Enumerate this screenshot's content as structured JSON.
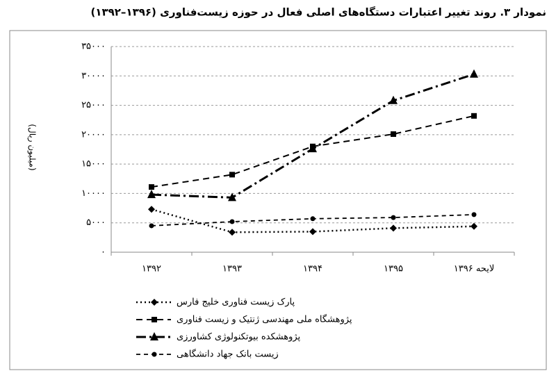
{
  "chart_data": {
    "type": "line",
    "title": "نمودار ۳. روند تغییر اعتبارات دستگاه‌های اصلی فعال در حوزه زیست‌فناوری (۱۳۹۶–۱۳۹۲)",
    "y_label": "(میلیون ریال)",
    "categories": [
      "۱۳۹۲",
      "۱۳۹۳",
      "۱۳۹۴",
      "۱۳۹۵",
      "لایحه ۱۳۹۶"
    ],
    "ylim": [
      0,
      35000
    ],
    "yticks": [
      {
        "value": 0,
        "label": "۰"
      },
      {
        "value": 5000,
        "label": "۵۰۰۰"
      },
      {
        "value": 10000,
        "label": "۱۰۰۰۰"
      },
      {
        "value": 15000,
        "label": "۱۵۰۰۰"
      },
      {
        "value": 20000,
        "label": "۲۰۰۰۰"
      },
      {
        "value": 25000,
        "label": "۲۵۰۰۰"
      },
      {
        "value": 30000,
        "label": "۳۰۰۰۰"
      },
      {
        "value": 35000,
        "label": "۳۵۰۰۰"
      }
    ],
    "grid": true,
    "legend": "bottom",
    "series": [
      {
        "name": "پارک زیست فناوری خلیج فارس",
        "color": "#000000",
        "linestyle": "dotted",
        "marker": "diamond",
        "values": [
          7300,
          3400,
          3500,
          4100,
          4400
        ]
      },
      {
        "name": "پژوهشگاه ملی مهندسی ژنتیک و زیست فناوری",
        "color": "#000000",
        "linestyle": "dashed",
        "marker": "square",
        "values": [
          11100,
          13200,
          18000,
          20100,
          23200
        ]
      },
      {
        "name": "پژوهشکده بیوتکنولوژی کشاورزی",
        "color": "#000000",
        "linestyle": "dashdot",
        "marker": "triangle",
        "values": [
          9800,
          9300,
          17600,
          25800,
          30300
        ]
      },
      {
        "name": "زیست بانک جهاد دانشگاهی",
        "color": "#000000",
        "linestyle": "shortdash",
        "marker": "circle",
        "values": [
          4500,
          5200,
          5700,
          5900,
          6400
        ]
      }
    ]
  }
}
